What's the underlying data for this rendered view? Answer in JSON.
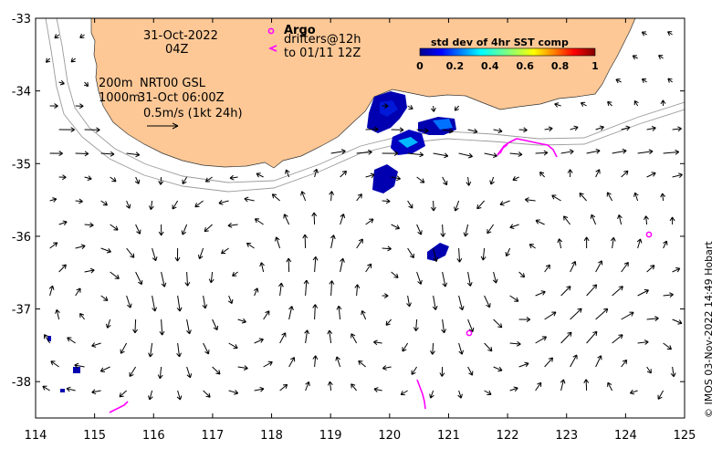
{
  "axes": {
    "x_ticks": [
      "114",
      "115",
      "116",
      "117",
      "118",
      "119",
      "120",
      "121",
      "122",
      "123",
      "124",
      "125"
    ],
    "y_ticks": [
      "-33",
      "-34",
      "-35",
      "-36",
      "-37",
      "-38"
    ],
    "x_range": [
      114,
      125
    ],
    "y_range": [
      -38.5,
      -33
    ]
  },
  "date_block": {
    "line1": "31-Oct-2022",
    "line2": "04Z"
  },
  "legend_text": {
    "isobath_200": "200m",
    "isobath_1000": "1000m",
    "product": "NRT00 GSL",
    "analysis_time": "31-Oct 06:00Z",
    "scale": "0.5m/s (1kt 24h)"
  },
  "argo": {
    "title": "Argo",
    "line1": "drifters@12h",
    "line2": "to 01/11 12Z",
    "color": "#ff00ff"
  },
  "colorbar": {
    "title": "std dev of 4hr SST comp",
    "ticks": [
      "0",
      "0.2",
      "0.4",
      "0.6",
      "0.8",
      "1"
    ]
  },
  "credit": "© IMOS 03-Nov-2022 14:49 Hobart",
  "colors": {
    "land": "#fdc896",
    "ocean": "#ffffff",
    "argo": "#ff00ff",
    "isobath": "#9b9b9b"
  },
  "argo_floats": [
    {
      "lon": 124.4,
      "lat": -35.97
    },
    {
      "lon": 121.35,
      "lat": -37.35
    }
  ]
}
